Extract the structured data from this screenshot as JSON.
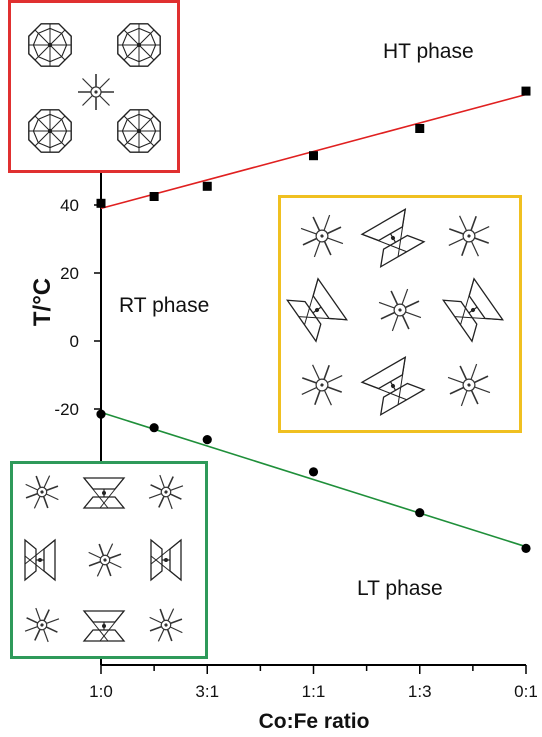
{
  "chart_data": {
    "type": "scatter",
    "title": "",
    "xlabel": "Co:Fe ratio",
    "ylabel": "T/°C",
    "x_positions": [
      0,
      1,
      2,
      3,
      4,
      5,
      6,
      7,
      8
    ],
    "x_ticks": [
      {
        "x": 0,
        "label": "1:0"
      },
      {
        "x": 2,
        "label": "3:1"
      },
      {
        "x": 4,
        "label": "1:1"
      },
      {
        "x": 6,
        "label": "1:3"
      },
      {
        "x": 8,
        "label": "0:1"
      }
    ],
    "y_ticks": [
      40,
      20,
      0,
      -20
    ],
    "xlim": [
      0,
      8
    ],
    "ylim": [
      -55,
      102
    ],
    "grid": false,
    "series": [
      {
        "marker": "square",
        "color": "#e02020",
        "x": [
          0,
          1,
          2,
          4,
          6,
          8
        ],
        "y": [
          40.5,
          42.5,
          45.5,
          54.5,
          62.5,
          73.5
        ],
        "fit": [
          39,
          72.5
        ]
      },
      {
        "marker": "circle",
        "color": "#1f8f3a",
        "x": [
          0,
          1,
          2,
          4,
          6,
          8
        ],
        "y": [
          -21.5,
          -25.5,
          -29,
          -38.5,
          -50.5,
          -61
        ],
        "fit": [
          -21,
          -60.5
        ]
      }
    ],
    "annotations": [
      "HT phase",
      "RT phase",
      "LT phase"
    ]
  },
  "insets": {
    "ht_color": "#e03030",
    "rt_color": "#f0c020",
    "lt_color": "#2e9a5a"
  }
}
